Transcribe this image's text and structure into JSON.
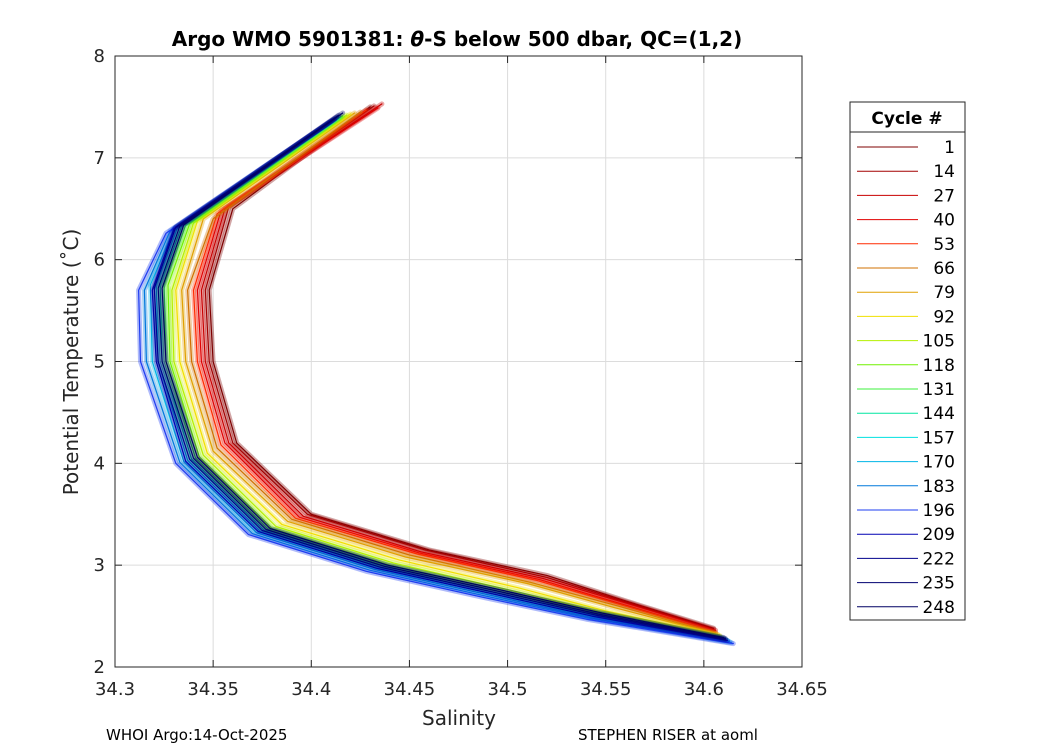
{
  "chart_data": {
    "type": "line",
    "title_pre": "Argo WMO 5901381: ",
    "title_theta": "θ",
    "title_post": "-S below 500 dbar,  QC=(1,2)",
    "xlabel": "Salinity",
    "ylabel": "Potential Temperature (˚C)",
    "xlim": [
      34.3,
      34.65
    ],
    "ylim": [
      2,
      8
    ],
    "xticks": [
      34.3,
      34.35,
      34.4,
      34.45,
      34.5,
      34.55,
      34.6,
      34.65
    ],
    "xtick_labels": [
      "34.3",
      "34.35",
      "34.4",
      "34.45",
      "34.5",
      "34.55",
      "34.6",
      "34.65"
    ],
    "yticks": [
      2,
      3,
      4,
      5,
      6,
      7,
      8
    ],
    "ytick_labels": [
      "2",
      "3",
      "4",
      "5",
      "6",
      "7",
      "8"
    ],
    "grid": true,
    "legend_title": "Cycle #",
    "legend_position": "right",
    "series": [
      {
        "name": "1",
        "color": "#7f0000",
        "points": [
          [
            34.43,
            7.5
          ],
          [
            34.36,
            6.5
          ],
          [
            34.348,
            5.7
          ],
          [
            34.35,
            5.0
          ],
          [
            34.362,
            4.2
          ],
          [
            34.4,
            3.5
          ],
          [
            34.46,
            3.15
          ],
          [
            34.52,
            2.9
          ],
          [
            34.56,
            2.65
          ],
          [
            34.605,
            2.38
          ]
        ]
      },
      {
        "name": "14",
        "color": "#a30000",
        "points": [
          [
            34.432,
            7.51
          ],
          [
            34.358,
            6.52
          ],
          [
            34.346,
            5.7
          ],
          [
            34.348,
            5.0
          ],
          [
            34.36,
            4.2
          ],
          [
            34.398,
            3.5
          ],
          [
            34.458,
            3.15
          ],
          [
            34.52,
            2.88
          ],
          [
            34.56,
            2.64
          ],
          [
            34.605,
            2.37
          ]
        ]
      },
      {
        "name": "27",
        "color": "#c80000",
        "points": [
          [
            34.436,
            7.53
          ],
          [
            34.356,
            6.5
          ],
          [
            34.344,
            5.7
          ],
          [
            34.346,
            5.0
          ],
          [
            34.358,
            4.2
          ],
          [
            34.396,
            3.48
          ],
          [
            34.456,
            3.13
          ],
          [
            34.518,
            2.87
          ],
          [
            34.56,
            2.63
          ],
          [
            34.606,
            2.36
          ]
        ]
      },
      {
        "name": "40",
        "color": "#e00000",
        "points": [
          [
            34.434,
            7.49
          ],
          [
            34.354,
            6.48
          ],
          [
            34.342,
            5.7
          ],
          [
            34.344,
            5.0
          ],
          [
            34.356,
            4.2
          ],
          [
            34.394,
            3.47
          ],
          [
            34.455,
            3.12
          ],
          [
            34.516,
            2.86
          ],
          [
            34.558,
            2.62
          ],
          [
            34.605,
            2.35
          ]
        ]
      },
      {
        "name": "53",
        "color": "#ff2a00",
        "points": [
          [
            34.428,
            7.47
          ],
          [
            34.352,
            6.45
          ],
          [
            34.34,
            5.7
          ],
          [
            34.342,
            5.0
          ],
          [
            34.354,
            4.18
          ],
          [
            34.392,
            3.46
          ],
          [
            34.454,
            3.11
          ],
          [
            34.515,
            2.85
          ],
          [
            34.558,
            2.61
          ],
          [
            34.606,
            2.34
          ]
        ]
      },
      {
        "name": "66",
        "color": "#d07000",
        "points": [
          [
            34.425,
            7.45
          ],
          [
            34.35,
            6.4
          ],
          [
            34.337,
            5.7
          ],
          [
            34.339,
            5.0
          ],
          [
            34.352,
            4.15
          ],
          [
            34.39,
            3.45
          ],
          [
            34.45,
            3.1
          ],
          [
            34.512,
            2.83
          ],
          [
            34.556,
            2.6
          ],
          [
            34.606,
            2.33
          ]
        ]
      },
      {
        "name": "79",
        "color": "#e0a000",
        "points": [
          [
            34.422,
            7.44
          ],
          [
            34.345,
            6.4
          ],
          [
            34.334,
            5.7
          ],
          [
            34.336,
            5.0
          ],
          [
            34.35,
            4.12
          ],
          [
            34.388,
            3.43
          ],
          [
            34.448,
            3.08
          ],
          [
            34.51,
            2.82
          ],
          [
            34.555,
            2.58
          ],
          [
            34.607,
            2.32
          ]
        ]
      },
      {
        "name": "92",
        "color": "#f0e000",
        "points": [
          [
            34.42,
            7.43
          ],
          [
            34.342,
            6.38
          ],
          [
            34.331,
            5.7
          ],
          [
            34.333,
            5.0
          ],
          [
            34.347,
            4.1
          ],
          [
            34.385,
            3.4
          ],
          [
            34.445,
            3.05
          ],
          [
            34.505,
            2.78
          ],
          [
            34.55,
            2.55
          ],
          [
            34.608,
            2.31
          ]
        ]
      },
      {
        "name": "105",
        "color": "#b4f000",
        "points": [
          [
            34.418,
            7.42
          ],
          [
            34.34,
            6.36
          ],
          [
            34.329,
            5.7
          ],
          [
            34.33,
            5.0
          ],
          [
            34.345,
            4.08
          ],
          [
            34.382,
            3.38
          ],
          [
            34.442,
            3.02
          ],
          [
            34.5,
            2.76
          ],
          [
            34.548,
            2.54
          ],
          [
            34.608,
            2.3
          ]
        ]
      },
      {
        "name": "118",
        "color": "#70f000",
        "points": [
          [
            34.416,
            7.41
          ],
          [
            34.338,
            6.35
          ],
          [
            34.327,
            5.75
          ],
          [
            34.328,
            5.0
          ],
          [
            34.343,
            4.06
          ],
          [
            34.38,
            3.36
          ],
          [
            34.44,
            3.0
          ],
          [
            34.498,
            2.75
          ],
          [
            34.546,
            2.53
          ],
          [
            34.609,
            2.29
          ]
        ]
      },
      {
        "name": "131",
        "color": "#3cf03c",
        "points": [
          [
            34.415,
            7.4
          ],
          [
            34.336,
            6.34
          ],
          [
            34.325,
            5.75
          ],
          [
            34.326,
            5.0
          ],
          [
            34.341,
            4.05
          ],
          [
            34.378,
            3.35
          ],
          [
            34.438,
            2.99
          ],
          [
            34.496,
            2.74
          ],
          [
            34.545,
            2.52
          ],
          [
            34.61,
            2.28
          ]
        ]
      },
      {
        "name": "144",
        "color": "#00e6a0",
        "points": [
          [
            34.414,
            7.4
          ],
          [
            34.334,
            6.33
          ],
          [
            34.323,
            5.75
          ],
          [
            34.324,
            5.0
          ],
          [
            34.339,
            4.04
          ],
          [
            34.376,
            3.34
          ],
          [
            34.436,
            2.98
          ],
          [
            34.494,
            2.73
          ],
          [
            34.544,
            2.51
          ],
          [
            34.611,
            2.27
          ]
        ]
      },
      {
        "name": "157",
        "color": "#00e0e0",
        "points": [
          [
            34.413,
            7.39
          ],
          [
            34.332,
            6.32
          ],
          [
            34.321,
            5.75
          ],
          [
            34.322,
            5.0
          ],
          [
            34.337,
            4.03
          ],
          [
            34.374,
            3.33
          ],
          [
            34.434,
            2.97
          ],
          [
            34.492,
            2.72
          ],
          [
            34.543,
            2.5
          ],
          [
            34.612,
            2.26
          ]
        ]
      },
      {
        "name": "170",
        "color": "#00b4e6",
        "points": [
          [
            34.412,
            7.38
          ],
          [
            34.33,
            6.3
          ],
          [
            34.318,
            5.75
          ],
          [
            34.319,
            5.0
          ],
          [
            34.335,
            4.02
          ],
          [
            34.372,
            3.32
          ],
          [
            34.432,
            2.96
          ],
          [
            34.49,
            2.71
          ],
          [
            34.542,
            2.49
          ],
          [
            34.613,
            2.25
          ]
        ]
      },
      {
        "name": "183",
        "color": "#0078dc",
        "points": [
          [
            34.411,
            7.37
          ],
          [
            34.328,
            6.28
          ],
          [
            34.315,
            5.7
          ],
          [
            34.316,
            5.0
          ],
          [
            34.333,
            4.01
          ],
          [
            34.37,
            3.31
          ],
          [
            34.43,
            2.95
          ],
          [
            34.488,
            2.7
          ],
          [
            34.541,
            2.48
          ],
          [
            34.614,
            2.24
          ]
        ]
      },
      {
        "name": "196",
        "color": "#1e3cf0",
        "points": [
          [
            34.41,
            7.36
          ],
          [
            34.326,
            6.26
          ],
          [
            34.312,
            5.7
          ],
          [
            34.313,
            5.0
          ],
          [
            34.331,
            4.0
          ],
          [
            34.368,
            3.3
          ],
          [
            34.428,
            2.94
          ],
          [
            34.486,
            2.69
          ],
          [
            34.54,
            2.47
          ],
          [
            34.615,
            2.23
          ]
        ]
      },
      {
        "name": "209",
        "color": "#0000b4",
        "points": [
          [
            34.412,
            7.38
          ],
          [
            34.33,
            6.3
          ],
          [
            34.319,
            5.7
          ],
          [
            34.321,
            5.0
          ],
          [
            34.336,
            4.02
          ],
          [
            34.373,
            3.33
          ],
          [
            34.433,
            2.97
          ],
          [
            34.492,
            2.72
          ],
          [
            34.543,
            2.5
          ],
          [
            34.612,
            2.26
          ]
        ]
      },
      {
        "name": "222",
        "color": "#00008c",
        "points": [
          [
            34.413,
            7.4
          ],
          [
            34.331,
            6.32
          ],
          [
            34.32,
            5.72
          ],
          [
            34.322,
            5.0
          ],
          [
            34.338,
            4.04
          ],
          [
            34.375,
            3.34
          ],
          [
            34.435,
            2.98
          ],
          [
            34.494,
            2.73
          ],
          [
            34.545,
            2.51
          ],
          [
            34.611,
            2.27
          ]
        ]
      },
      {
        "name": "235",
        "color": "#000070",
        "points": [
          [
            34.414,
            7.42
          ],
          [
            34.333,
            6.33
          ],
          [
            34.322,
            5.72
          ],
          [
            34.324,
            5.0
          ],
          [
            34.34,
            4.05
          ],
          [
            34.377,
            3.35
          ],
          [
            34.437,
            2.99
          ],
          [
            34.496,
            2.74
          ],
          [
            34.546,
            2.52
          ],
          [
            34.611,
            2.28
          ]
        ]
      },
      {
        "name": "248",
        "color": "#000064",
        "points": [
          [
            34.416,
            7.44
          ],
          [
            34.335,
            6.34
          ],
          [
            34.324,
            5.72
          ],
          [
            34.326,
            5.0
          ],
          [
            34.342,
            4.06
          ],
          [
            34.379,
            3.36
          ],
          [
            34.439,
            3.0
          ],
          [
            34.498,
            2.75
          ],
          [
            34.548,
            2.53
          ],
          [
            34.61,
            2.29
          ]
        ]
      }
    ]
  },
  "footer": {
    "left": "WHOI Argo:14-Oct-2025",
    "right": "STEPHEN RISER at aoml"
  }
}
